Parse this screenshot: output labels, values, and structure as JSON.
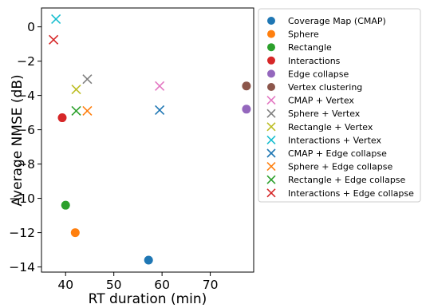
{
  "chart_data": {
    "type": "scatter",
    "title": "",
    "xlabel": "RT duration (min)",
    "ylabel": "Average NMSE (dB)",
    "xlim": [
      35,
      79
    ],
    "ylim": [
      -14.3,
      1.1
    ],
    "xticks": [
      40,
      50,
      60,
      70
    ],
    "yticks": [
      0,
      -2,
      -4,
      -6,
      -8,
      -10,
      -12,
      -14
    ],
    "xtick_labels": [
      "40",
      "50",
      "60",
      "70"
    ],
    "ytick_labels": [
      "0",
      "−2",
      "−4",
      "−6",
      "−8",
      "−10",
      "−12",
      "−14"
    ],
    "grid": false,
    "legend_position": "outside-right",
    "series": [
      {
        "name": "Coverage Map (CMAP)",
        "marker": "circle",
        "color": "#1f77b4",
        "x": [
          57.2
        ],
        "y": [
          -13.6
        ]
      },
      {
        "name": "Sphere",
        "marker": "circle",
        "color": "#ff7f0e",
        "x": [
          42.0
        ],
        "y": [
          -12.0
        ]
      },
      {
        "name": "Rectangle",
        "marker": "circle",
        "color": "#2ca02c",
        "x": [
          40.0
        ],
        "y": [
          -10.4
        ]
      },
      {
        "name": "Interactions",
        "marker": "circle",
        "color": "#d62728",
        "x": [
          39.3
        ],
        "y": [
          -5.3
        ]
      },
      {
        "name": "Edge collapse",
        "marker": "circle",
        "color": "#9467bd",
        "x": [
          77.5
        ],
        "y": [
          -4.8
        ]
      },
      {
        "name": "Vertex clustering",
        "marker": "circle",
        "color": "#8c564b",
        "x": [
          77.5
        ],
        "y": [
          -3.45
        ]
      },
      {
        "name": "CMAP + Vertex",
        "marker": "x",
        "color": "#e377c2",
        "x": [
          59.5
        ],
        "y": [
          -3.45
        ]
      },
      {
        "name": "Sphere + Vertex",
        "marker": "x",
        "color": "#7f7f7f",
        "x": [
          44.5
        ],
        "y": [
          -3.05
        ]
      },
      {
        "name": "Rectangle + Vertex",
        "marker": "x",
        "color": "#bcbd22",
        "x": [
          42.2
        ],
        "y": [
          -3.65
        ]
      },
      {
        "name": "Interactions + Vertex",
        "marker": "x",
        "color": "#17becf",
        "x": [
          38.0
        ],
        "y": [
          0.45
        ]
      },
      {
        "name": "CMAP + Edge collapse",
        "marker": "x",
        "color": "#1f77b4",
        "x": [
          59.5
        ],
        "y": [
          -4.85
        ]
      },
      {
        "name": "Sphere + Edge collapse",
        "marker": "x",
        "color": "#ff7f0e",
        "x": [
          44.5
        ],
        "y": [
          -4.9
        ]
      },
      {
        "name": "Rectangle + Edge collapse",
        "marker": "x",
        "color": "#2ca02c",
        "x": [
          42.2
        ],
        "y": [
          -4.9
        ]
      },
      {
        "name": "Interactions + Edge collapse",
        "marker": "x",
        "color": "#d62728",
        "x": [
          37.5
        ],
        "y": [
          -0.75
        ]
      }
    ]
  }
}
